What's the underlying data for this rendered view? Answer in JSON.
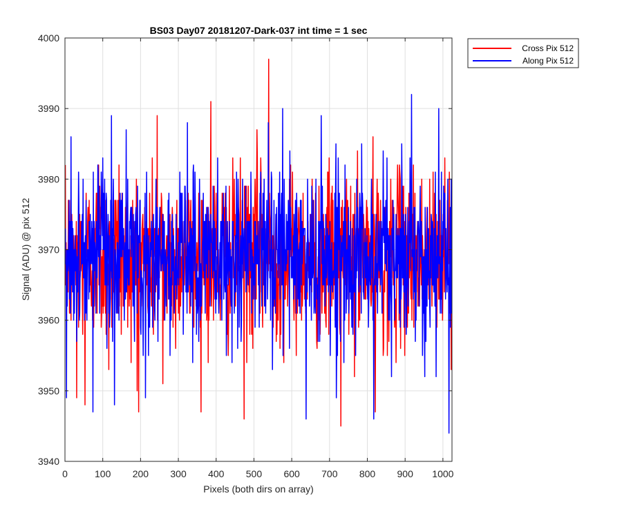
{
  "chart_data": {
    "type": "line",
    "title": "BS03 Day07 20181207-Dark-037 int time = 1 sec",
    "xlabel": "Pixels (both dirs on array)",
    "ylabel": "Signal (ADU) @ pix 512",
    "xlim": [
      0,
      1024
    ],
    "ylim": [
      3940,
      4000
    ],
    "xticks": [
      0,
      100,
      200,
      300,
      400,
      500,
      600,
      700,
      800,
      900,
      1000
    ],
    "yticks": [
      3940,
      3950,
      3960,
      3970,
      3980,
      3990,
      4000
    ],
    "grid": true,
    "legend_position": "outside-top-right",
    "series": [
      {
        "name": "Cross Pix 512",
        "color": "#ff0000",
        "stats": {
          "mean": 3969,
          "std": 6
        },
        "anchor_points": [
          {
            "x": 0,
            "y": 3982
          },
          {
            "x": 15,
            "y": 3960
          },
          {
            "x": 30,
            "y": 3949
          },
          {
            "x": 52,
            "y": 3948
          },
          {
            "x": 88,
            "y": 3982
          },
          {
            "x": 115,
            "y": 3953
          },
          {
            "x": 142,
            "y": 3982
          },
          {
            "x": 190,
            "y": 3950
          },
          {
            "x": 243,
            "y": 3989
          },
          {
            "x": 258,
            "y": 3951
          },
          {
            "x": 385,
            "y": 3991
          },
          {
            "x": 473,
            "y": 3946
          },
          {
            "x": 507,
            "y": 3987
          },
          {
            "x": 538,
            "y": 3997
          },
          {
            "x": 729,
            "y": 3945
          },
          {
            "x": 820,
            "y": 3947
          },
          {
            "x": 1004,
            "y": 3983
          }
        ]
      },
      {
        "name": "Along Pix 512",
        "color": "#0000ff",
        "stats": {
          "mean": 3969,
          "std": 6
        },
        "anchor_points": [
          {
            "x": 3,
            "y": 3949
          },
          {
            "x": 15,
            "y": 3986
          },
          {
            "x": 73,
            "y": 3947
          },
          {
            "x": 122,
            "y": 3989
          },
          {
            "x": 130,
            "y": 3948
          },
          {
            "x": 212,
            "y": 3949
          },
          {
            "x": 537,
            "y": 3988
          },
          {
            "x": 575,
            "y": 3990
          },
          {
            "x": 637,
            "y": 3946
          },
          {
            "x": 816,
            "y": 3946
          },
          {
            "x": 916,
            "y": 3992
          },
          {
            "x": 988,
            "y": 3990
          },
          {
            "x": 1015,
            "y": 3944
          }
        ]
      }
    ]
  }
}
